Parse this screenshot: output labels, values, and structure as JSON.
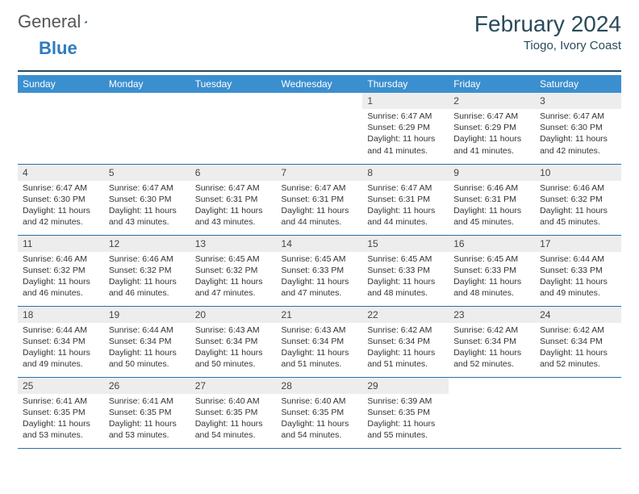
{
  "logo": {
    "word1": "General",
    "word2": "Blue"
  },
  "header": {
    "title": "February 2024",
    "subtitle": "Tiogo, Ivory Coast"
  },
  "theme": {
    "header_bar": "#3b8fcf",
    "rule": "#2a4b5b",
    "daynum_bg": "#ededed",
    "row_border": "#2a6fa8",
    "title_color": "#2a4b5b"
  },
  "weekdays": [
    "Sunday",
    "Monday",
    "Tuesday",
    "Wednesday",
    "Thursday",
    "Friday",
    "Saturday"
  ],
  "cells": [
    {
      "empty": true
    },
    {
      "empty": true
    },
    {
      "empty": true
    },
    {
      "empty": true
    },
    {
      "day": "1",
      "sunrise": "Sunrise: 6:47 AM",
      "sunset": "Sunset: 6:29 PM",
      "daylight": "Daylight: 11 hours and 41 minutes."
    },
    {
      "day": "2",
      "sunrise": "Sunrise: 6:47 AM",
      "sunset": "Sunset: 6:29 PM",
      "daylight": "Daylight: 11 hours and 41 minutes."
    },
    {
      "day": "3",
      "sunrise": "Sunrise: 6:47 AM",
      "sunset": "Sunset: 6:30 PM",
      "daylight": "Daylight: 11 hours and 42 minutes."
    },
    {
      "day": "4",
      "sunrise": "Sunrise: 6:47 AM",
      "sunset": "Sunset: 6:30 PM",
      "daylight": "Daylight: 11 hours and 42 minutes."
    },
    {
      "day": "5",
      "sunrise": "Sunrise: 6:47 AM",
      "sunset": "Sunset: 6:30 PM",
      "daylight": "Daylight: 11 hours and 43 minutes."
    },
    {
      "day": "6",
      "sunrise": "Sunrise: 6:47 AM",
      "sunset": "Sunset: 6:31 PM",
      "daylight": "Daylight: 11 hours and 43 minutes."
    },
    {
      "day": "7",
      "sunrise": "Sunrise: 6:47 AM",
      "sunset": "Sunset: 6:31 PM",
      "daylight": "Daylight: 11 hours and 44 minutes."
    },
    {
      "day": "8",
      "sunrise": "Sunrise: 6:47 AM",
      "sunset": "Sunset: 6:31 PM",
      "daylight": "Daylight: 11 hours and 44 minutes."
    },
    {
      "day": "9",
      "sunrise": "Sunrise: 6:46 AM",
      "sunset": "Sunset: 6:31 PM",
      "daylight": "Daylight: 11 hours and 45 minutes."
    },
    {
      "day": "10",
      "sunrise": "Sunrise: 6:46 AM",
      "sunset": "Sunset: 6:32 PM",
      "daylight": "Daylight: 11 hours and 45 minutes."
    },
    {
      "day": "11",
      "sunrise": "Sunrise: 6:46 AM",
      "sunset": "Sunset: 6:32 PM",
      "daylight": "Daylight: 11 hours and 46 minutes."
    },
    {
      "day": "12",
      "sunrise": "Sunrise: 6:46 AM",
      "sunset": "Sunset: 6:32 PM",
      "daylight": "Daylight: 11 hours and 46 minutes."
    },
    {
      "day": "13",
      "sunrise": "Sunrise: 6:45 AM",
      "sunset": "Sunset: 6:32 PM",
      "daylight": "Daylight: 11 hours and 47 minutes."
    },
    {
      "day": "14",
      "sunrise": "Sunrise: 6:45 AM",
      "sunset": "Sunset: 6:33 PM",
      "daylight": "Daylight: 11 hours and 47 minutes."
    },
    {
      "day": "15",
      "sunrise": "Sunrise: 6:45 AM",
      "sunset": "Sunset: 6:33 PM",
      "daylight": "Daylight: 11 hours and 48 minutes."
    },
    {
      "day": "16",
      "sunrise": "Sunrise: 6:45 AM",
      "sunset": "Sunset: 6:33 PM",
      "daylight": "Daylight: 11 hours and 48 minutes."
    },
    {
      "day": "17",
      "sunrise": "Sunrise: 6:44 AM",
      "sunset": "Sunset: 6:33 PM",
      "daylight": "Daylight: 11 hours and 49 minutes."
    },
    {
      "day": "18",
      "sunrise": "Sunrise: 6:44 AM",
      "sunset": "Sunset: 6:34 PM",
      "daylight": "Daylight: 11 hours and 49 minutes."
    },
    {
      "day": "19",
      "sunrise": "Sunrise: 6:44 AM",
      "sunset": "Sunset: 6:34 PM",
      "daylight": "Daylight: 11 hours and 50 minutes."
    },
    {
      "day": "20",
      "sunrise": "Sunrise: 6:43 AM",
      "sunset": "Sunset: 6:34 PM",
      "daylight": "Daylight: 11 hours and 50 minutes."
    },
    {
      "day": "21",
      "sunrise": "Sunrise: 6:43 AM",
      "sunset": "Sunset: 6:34 PM",
      "daylight": "Daylight: 11 hours and 51 minutes."
    },
    {
      "day": "22",
      "sunrise": "Sunrise: 6:42 AM",
      "sunset": "Sunset: 6:34 PM",
      "daylight": "Daylight: 11 hours and 51 minutes."
    },
    {
      "day": "23",
      "sunrise": "Sunrise: 6:42 AM",
      "sunset": "Sunset: 6:34 PM",
      "daylight": "Daylight: 11 hours and 52 minutes."
    },
    {
      "day": "24",
      "sunrise": "Sunrise: 6:42 AM",
      "sunset": "Sunset: 6:34 PM",
      "daylight": "Daylight: 11 hours and 52 minutes."
    },
    {
      "day": "25",
      "sunrise": "Sunrise: 6:41 AM",
      "sunset": "Sunset: 6:35 PM",
      "daylight": "Daylight: 11 hours and 53 minutes."
    },
    {
      "day": "26",
      "sunrise": "Sunrise: 6:41 AM",
      "sunset": "Sunset: 6:35 PM",
      "daylight": "Daylight: 11 hours and 53 minutes."
    },
    {
      "day": "27",
      "sunrise": "Sunrise: 6:40 AM",
      "sunset": "Sunset: 6:35 PM",
      "daylight": "Daylight: 11 hours and 54 minutes."
    },
    {
      "day": "28",
      "sunrise": "Sunrise: 6:40 AM",
      "sunset": "Sunset: 6:35 PM",
      "daylight": "Daylight: 11 hours and 54 minutes."
    },
    {
      "day": "29",
      "sunrise": "Sunrise: 6:39 AM",
      "sunset": "Sunset: 6:35 PM",
      "daylight": "Daylight: 11 hours and 55 minutes."
    },
    {
      "empty": true
    },
    {
      "empty": true
    }
  ]
}
